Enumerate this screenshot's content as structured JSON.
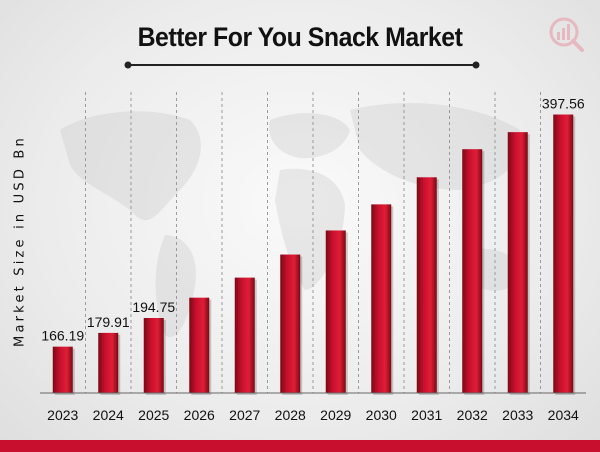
{
  "colors": {
    "bar": "#c8102e",
    "bar_dark": "#7a0a14",
    "accent": "#c8102e"
  },
  "logo_icon": "bar-chart-magnifier-logo",
  "chart_data": {
    "type": "bar",
    "title": "Better For You Snack Market",
    "ylabel": "Market Size in USD Bn",
    "xlabel": "",
    "categories": [
      "2023",
      "2024",
      "2025",
      "2026",
      "2027",
      "2028",
      "2029",
      "2030",
      "2031",
      "2032",
      "2033",
      "2034"
    ],
    "values": [
      166.19,
      179.91,
      194.75,
      215,
      235,
      258,
      282,
      308,
      335,
      363,
      380,
      397.56
    ],
    "data_labels": [
      "166.19",
      "179.91",
      "194.75",
      "",
      "",
      "",
      "",
      "",
      "",
      "",
      "",
      "397.56"
    ],
    "ylim": [
      120,
      420
    ],
    "grid": "vertical dashed",
    "legend": "none"
  }
}
